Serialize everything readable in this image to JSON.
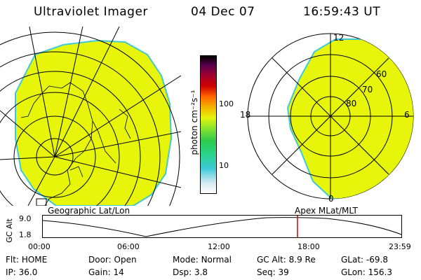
{
  "header": {
    "title": "Ultraviolet Imager",
    "date": "04 Dec 07",
    "time": "16:59:43 UT"
  },
  "colors": {
    "aurora_fill": "#e6f50a",
    "edge": "#3ec9d9",
    "cursor": "#cc0000"
  },
  "left_panel": {
    "label": "Geographic Lat/Lon"
  },
  "right_panel": {
    "label": "Apex MLat/MLT",
    "mlt_labels": {
      "top": "12",
      "left": "18",
      "right": "6",
      "bottom": "0"
    },
    "lat_labels": [
      "60",
      "70",
      "80"
    ]
  },
  "colorbar": {
    "unit_label": "photon cm⁻²s⁻¹",
    "ticks": [
      "100",
      "10"
    ]
  },
  "timeline": {
    "ylabel": "GC Alt",
    "y_ticks": [
      "9.0",
      "1.8"
    ],
    "x_ticks": [
      "00:00",
      "06:00",
      "12:00",
      "18:00",
      "23:59"
    ],
    "cursor_time_hours": 17.0
  },
  "status": {
    "row1": [
      {
        "key": "Flt:",
        "value": "HOME"
      },
      {
        "key": "Door:",
        "value": "Open"
      },
      {
        "key": "Mode:",
        "value": "Normal"
      },
      {
        "key": "GC Alt:",
        "value": "8.9 Re"
      },
      {
        "key": "GLat:",
        "value": "-69.8"
      }
    ],
    "row2": [
      {
        "key": "IP:",
        "value": "36.0"
      },
      {
        "key": "Gain:",
        "value": "14"
      },
      {
        "key": "Dsp:",
        "value": "3.8"
      },
      {
        "key": "Seq:",
        "value": "39"
      },
      {
        "key": "GLon:",
        "value": "156.3"
      }
    ]
  }
}
